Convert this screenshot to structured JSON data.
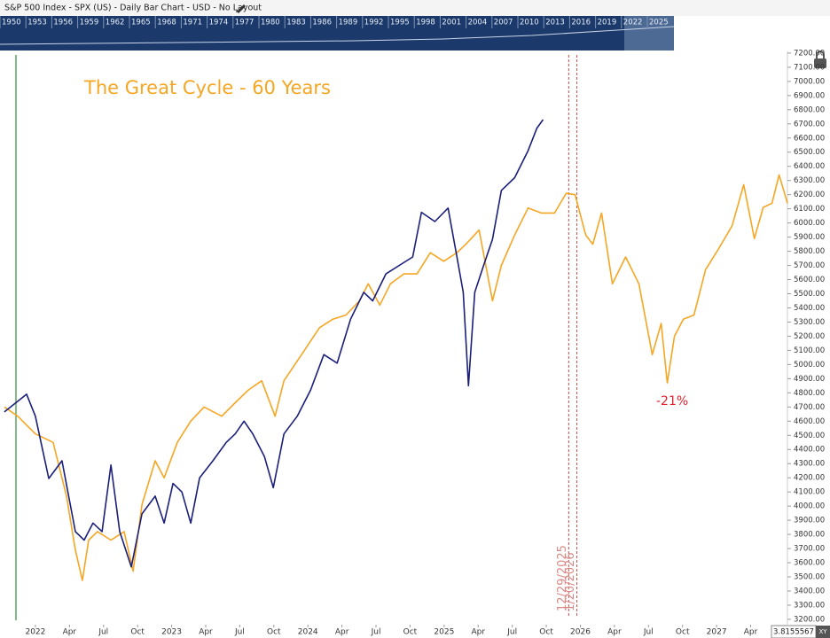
{
  "header": "S&P 500 Index - SPX (US) - Daily Bar Chart - USD - No Layout",
  "navigator": {
    "years": [
      "1950",
      "1953",
      "1956",
      "1959",
      "1962",
      "1965",
      "1968",
      "1971",
      "1974",
      "1977",
      "1980",
      "1983",
      "1986",
      "1989",
      "1992",
      "1995",
      "1998",
      "2001",
      "2004",
      "2007",
      "2010",
      "2013",
      "2016",
      "2019",
      "2022",
      "2025"
    ]
  },
  "price_tag": "3.8155567",
  "price_tag_mode": "XY",
  "chart_data": {
    "type": "line",
    "title": "The Great Cycle - 60 Years",
    "xlim": [
      2021.74,
      2027.52
    ],
    "ylim": [
      3162,
      7212
    ],
    "xticks": [
      {
        "value": 2022,
        "label": "2022"
      },
      {
        "value": 2022.25,
        "label": "Apr"
      },
      {
        "value": 2022.5,
        "label": "Jul"
      },
      {
        "value": 2022.75,
        "label": "Oct"
      },
      {
        "value": 2023,
        "label": "2023"
      },
      {
        "value": 2023.25,
        "label": "Apr"
      },
      {
        "value": 2023.5,
        "label": "Jul"
      },
      {
        "value": 2023.75,
        "label": "Oct"
      },
      {
        "value": 2024,
        "label": "2024"
      },
      {
        "value": 2024.25,
        "label": "Apr"
      },
      {
        "value": 2024.5,
        "label": "Jul"
      },
      {
        "value": 2024.75,
        "label": "Oct"
      },
      {
        "value": 2025,
        "label": "2025"
      },
      {
        "value": 2025.25,
        "label": "Apr"
      },
      {
        "value": 2025.5,
        "label": "Jul"
      },
      {
        "value": 2025.75,
        "label": "Oct"
      },
      {
        "value": 2026,
        "label": "2026"
      },
      {
        "value": 2026.25,
        "label": "Apr"
      },
      {
        "value": 2026.5,
        "label": "Jul"
      },
      {
        "value": 2026.75,
        "label": "Oct"
      },
      {
        "value": 2027,
        "label": "2027"
      },
      {
        "value": 2027.25,
        "label": "Apr"
      }
    ],
    "yticks": [
      {
        "value": 3200,
        "label": "3200.00"
      },
      {
        "value": 3300,
        "label": "3300.00"
      },
      {
        "value": 3400,
        "label": "3400.00"
      },
      {
        "value": 3500,
        "label": "3500.00"
      },
      {
        "value": 3600,
        "label": "3600.00"
      },
      {
        "value": 3700,
        "label": "3700.00"
      },
      {
        "value": 3800,
        "label": "3800.00"
      },
      {
        "value": 3900,
        "label": "3900.00"
      },
      {
        "value": 4000,
        "label": "4000.00"
      },
      {
        "value": 4100,
        "label": "4100.00"
      },
      {
        "value": 4200,
        "label": "4200.00"
      },
      {
        "value": 4300,
        "label": "4300.00"
      },
      {
        "value": 4400,
        "label": "4400.00"
      },
      {
        "value": 4500,
        "label": "4500.00"
      },
      {
        "value": 4600,
        "label": "4600.00"
      },
      {
        "value": 4700,
        "label": "4700.00"
      },
      {
        "value": 4800,
        "label": "4800.00"
      },
      {
        "value": 4900,
        "label": "4900.00"
      },
      {
        "value": 5000,
        "label": "5000.00"
      },
      {
        "value": 5100,
        "label": "5100.00"
      },
      {
        "value": 5200,
        "label": "5200.00"
      },
      {
        "value": 5300,
        "label": "5300.00"
      },
      {
        "value": 5400,
        "label": "5400.00"
      },
      {
        "value": 5500,
        "label": "5500.00"
      },
      {
        "value": 5600,
        "label": "5600.00"
      },
      {
        "value": 5700,
        "label": "5700.00"
      },
      {
        "value": 5800,
        "label": "5800.00"
      },
      {
        "value": 5900,
        "label": "5900.00"
      },
      {
        "value": 6000,
        "label": "6000.00"
      },
      {
        "value": 6100,
        "label": "6100.00"
      },
      {
        "value": 6200,
        "label": "6200.00"
      },
      {
        "value": 6300,
        "label": "6300.00"
      },
      {
        "value": 6400,
        "label": "6400.00"
      },
      {
        "value": 6500,
        "label": "6500.00"
      },
      {
        "value": 6600,
        "label": "6600.00"
      },
      {
        "value": 6700,
        "label": "6700.00"
      },
      {
        "value": 6800,
        "label": "6800.00"
      },
      {
        "value": 6900,
        "label": "6900.00"
      },
      {
        "value": 7000,
        "label": "7000.00"
      },
      {
        "value": 7100,
        "label": "7100.00"
      },
      {
        "value": 7200,
        "label": "7200.00"
      }
    ],
    "series": [
      {
        "color": "#1a1f7a",
        "x": [
          2021.772,
          2021.935,
          2022.0,
          2022.098,
          2022.195,
          2022.293,
          2022.358,
          2022.423,
          2022.489,
          2022.554,
          2022.619,
          2022.704,
          2022.782,
          2022.879,
          2022.945,
          2023.01,
          2023.075,
          2023.14,
          2023.205,
          2023.303,
          2023.401,
          2023.466,
          2023.531,
          2023.596,
          2023.681,
          2023.746,
          2023.824,
          2023.922,
          2024.02,
          2024.117,
          2024.215,
          2024.313,
          2024.41,
          2024.476,
          2024.573,
          2024.671,
          2024.769,
          2024.834,
          2024.932,
          2025.029,
          2025.094,
          2025.14,
          2025.179,
          2025.225,
          2025.29,
          2025.355,
          2025.42,
          2025.518,
          2025.616,
          2025.681,
          2025.726
        ],
        "values": [
          4665,
          4790,
          4635,
          4195,
          4320,
          3820,
          3760,
          3880,
          3820,
          4290,
          3820,
          3570,
          3945,
          4070,
          3880,
          4160,
          4100,
          3880,
          4200,
          4320,
          4450,
          4510,
          4600,
          4510,
          4350,
          4130,
          4510,
          4635,
          4820,
          5070,
          5010,
          5320,
          5510,
          5450,
          5640,
          5700,
          5760,
          6075,
          6010,
          6105,
          5760,
          5510,
          4850,
          5510,
          5700,
          5885,
          6230,
          6320,
          6510,
          6670,
          6730
        ]
      },
      {
        "color": "#f5a623",
        "x": [
          2021.772,
          2021.87,
          2022.0,
          2022.13,
          2022.228,
          2022.293,
          2022.345,
          2022.391,
          2022.456,
          2022.554,
          2022.651,
          2022.717,
          2022.782,
          2022.879,
          2022.945,
          2023.042,
          2023.14,
          2023.238,
          2023.368,
          2023.466,
          2023.564,
          2023.661,
          2023.759,
          2023.824,
          2023.954,
          2024.085,
          2024.182,
          2024.28,
          2024.378,
          2024.443,
          2024.528,
          2024.606,
          2024.704,
          2024.801,
          2024.899,
          2024.997,
          2025.094,
          2025.16,
          2025.257,
          2025.355,
          2025.42,
          2025.518,
          2025.616,
          2025.713,
          2025.811,
          2025.896,
          2025.961,
          2026.039,
          2026.091,
          2026.156,
          2026.235,
          2026.332,
          2026.43,
          2026.528,
          2026.593,
          2026.638,
          2026.691,
          2026.756,
          2026.834,
          2026.919,
          2027.016,
          2027.114,
          2027.199,
          2027.277,
          2027.342,
          2027.407,
          2027.459,
          2027.52
        ],
        "values": [
          4700,
          4635,
          4510,
          4450,
          4070,
          3690,
          3475,
          3760,
          3820,
          3760,
          3820,
          3540,
          4010,
          4320,
          4200,
          4450,
          4600,
          4700,
          4635,
          4730,
          4820,
          4885,
          4635,
          4885,
          5070,
          5260,
          5320,
          5350,
          5450,
          5570,
          5420,
          5570,
          5640,
          5640,
          5790,
          5730,
          5790,
          5850,
          5950,
          5450,
          5700,
          5915,
          6105,
          6070,
          6070,
          6210,
          6200,
          5915,
          5850,
          6070,
          5570,
          5760,
          5570,
          5070,
          5290,
          4870,
          5200,
          5320,
          5350,
          5670,
          5820,
          5980,
          6270,
          5890,
          6110,
          6140,
          6340,
          6140
        ]
      }
    ],
    "vlines": [
      {
        "value": 2025.915,
        "label": "12/29/2025"
      },
      {
        "value": 2025.974,
        "label": "1/20/2026"
      }
    ],
    "annotation": "-21%"
  }
}
